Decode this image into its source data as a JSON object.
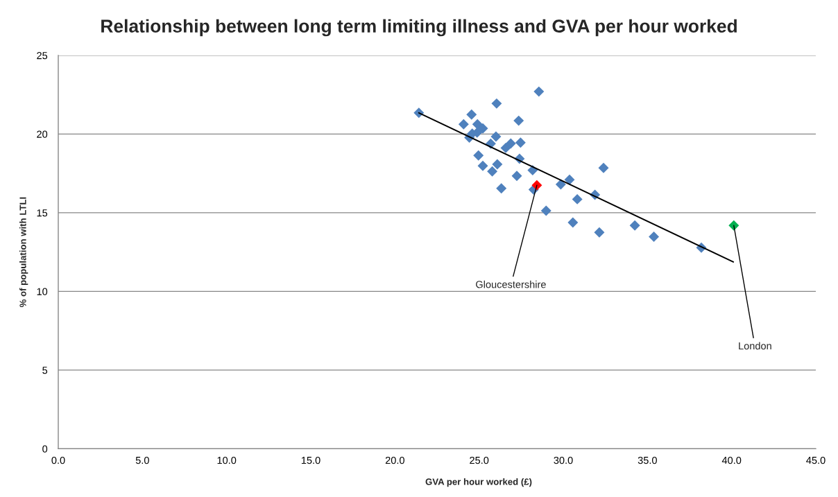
{
  "chart_data": {
    "type": "scatter",
    "title": "Relationship between long term limiting illness and GVA per hour worked",
    "xlabel": "GVA per hour worked (£)",
    "ylabel": "% of population with LTLI",
    "xlim": [
      0,
      45
    ],
    "ylim": [
      0,
      25
    ],
    "xticks": [
      {
        "value": 0,
        "label": "0.0"
      },
      {
        "value": 5,
        "label": "5.0"
      },
      {
        "value": 10,
        "label": "10.0"
      },
      {
        "value": 15,
        "label": "15.0"
      },
      {
        "value": 20,
        "label": "20.0"
      },
      {
        "value": 25,
        "label": "25.0"
      },
      {
        "value": 30,
        "label": "30.0"
      },
      {
        "value": 35,
        "label": "35.0"
      },
      {
        "value": 40,
        "label": "40.0"
      },
      {
        "value": 45,
        "label": "45.0"
      }
    ],
    "yticks": [
      0,
      5,
      10,
      15,
      20,
      25
    ],
    "grid": "y",
    "marker": "diamond",
    "series": [
      {
        "color": "#4f81bd",
        "x": [
          21.42,
          24.55,
          26.04,
          28.55,
          24.08,
          24.9,
          25.22,
          27.35,
          24.59,
          24.88,
          24.42,
          26.0,
          25.69,
          26.58,
          26.88,
          27.46,
          24.96,
          27.4,
          25.22,
          26.08,
          25.78,
          28.18,
          27.24,
          26.32,
          28.24,
          32.39,
          30.37,
          29.85,
          31.88,
          30.83,
          28.98,
          30.57,
          34.25,
          32.14,
          35.38,
          38.2
        ],
        "values": [
          21.35,
          21.24,
          21.94,
          22.7,
          20.62,
          20.62,
          20.36,
          20.85,
          20.03,
          20.09,
          19.77,
          19.84,
          19.39,
          19.12,
          19.4,
          19.46,
          18.64,
          18.43,
          17.98,
          18.08,
          17.63,
          17.7,
          17.34,
          16.55,
          16.47,
          17.85,
          17.1,
          16.8,
          16.14,
          15.86,
          15.13,
          14.38,
          14.19,
          13.75,
          13.48,
          12.78
        ]
      },
      {
        "color": "#ff0000",
        "x": [
          28.43
        ],
        "values": [
          16.75
        ]
      },
      {
        "color": "#00b050",
        "x": [
          40.13
        ],
        "values": [
          14.19
        ]
      },
      {
        "type": "line",
        "color": "#000000",
        "marker": "none",
        "x": [
          21.42,
          40.1
        ],
        "values": [
          21.35,
          11.87
        ]
      }
    ],
    "annotations": [
      {
        "text": "Gloucestershire",
        "x": 28.43,
        "y": 16.75
      },
      {
        "text": "London",
        "x": 40.13,
        "y": 14.19
      }
    ]
  }
}
